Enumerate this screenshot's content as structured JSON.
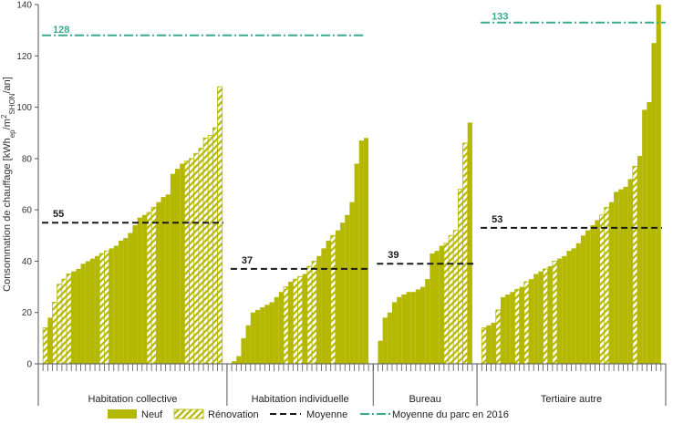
{
  "colors": {
    "neuf": "#b5b800",
    "renovation_stroke": "#b5b800",
    "moyenne": "#1a1a1a",
    "parc": "#3aaa8f",
    "axis": "#555555"
  },
  "chart_data": {
    "type": "bar",
    "title": "",
    "ylabel": "Consommation de chauffage [kWh_ep/m²_SHON/an]",
    "ylim": [
      0,
      140
    ],
    "yticks": [
      0,
      20,
      40,
      60,
      80,
      100,
      120,
      140
    ],
    "legend": {
      "placement": "bottom",
      "items": [
        "Neuf",
        "Rénovation",
        "Moyenne",
        "Moyenne du parc en 2016"
      ]
    },
    "groups": [
      {
        "label": "Habitation collective",
        "moyenne": 55,
        "moyenne_label": "55",
        "parc": 128,
        "parc_label": "128",
        "values": [
          14,
          18,
          24,
          31,
          33,
          35,
          36,
          37,
          39,
          40,
          41,
          42,
          43,
          44,
          45,
          46,
          48,
          49,
          51,
          54,
          57,
          58,
          59,
          61,
          63,
          65,
          66,
          74,
          76,
          78,
          79,
          80,
          82,
          84,
          88,
          89,
          92,
          108
        ],
        "types": [
          "R",
          "N",
          "R",
          "R",
          "R",
          "R",
          "N",
          "N",
          "N",
          "N",
          "N",
          "N",
          "R",
          "R",
          "N",
          "N",
          "N",
          "N",
          "N",
          "N",
          "N",
          "N",
          "R",
          "R",
          "N",
          "N",
          "N",
          "N",
          "N",
          "N",
          "R",
          "R",
          "R",
          "R",
          "R",
          "R",
          "R",
          "R"
        ]
      },
      {
        "label": "Habitation individuelle",
        "moyenne": 37,
        "moyenne_label": "37",
        "values": [
          1,
          3,
          10,
          15,
          20,
          21,
          22,
          23,
          24,
          26,
          28,
          30,
          32,
          33,
          34,
          35,
          38,
          40,
          42,
          45,
          48,
          50,
          52,
          55,
          58,
          63,
          78,
          87,
          88
        ],
        "types": [
          "N",
          "N",
          "N",
          "N",
          "N",
          "N",
          "N",
          "N",
          "N",
          "N",
          "N",
          "R",
          "N",
          "R",
          "R",
          "N",
          "R",
          "R",
          "N",
          "N",
          "N",
          "R",
          "N",
          "N",
          "N",
          "N",
          "N",
          "N",
          "N"
        ]
      },
      {
        "label": "Bureau",
        "moyenne": 39,
        "moyenne_label": "39",
        "values": [
          9,
          18,
          20,
          24,
          26,
          27,
          28,
          28,
          29,
          30,
          33,
          43,
          44,
          46,
          47,
          50,
          52,
          68,
          86,
          94
        ],
        "types": [
          "N",
          "N",
          "N",
          "N",
          "N",
          "N",
          "N",
          "N",
          "N",
          "N",
          "N",
          "N",
          "N",
          "N",
          "R",
          "R",
          "R",
          "R",
          "R",
          "N"
        ]
      },
      {
        "label": "Tertiaire autre",
        "moyenne": 53,
        "moyenne_label": "53",
        "parc": 133,
        "parc_label": "133",
        "values": [
          14,
          15,
          16,
          21,
          26,
          27,
          28,
          29,
          30,
          32,
          33,
          35,
          36,
          37,
          38,
          40,
          41,
          42,
          44,
          45,
          47,
          50,
          52,
          54,
          56,
          58,
          61,
          63,
          67,
          68,
          69,
          72,
          77,
          81,
          99,
          102,
          125,
          140
        ],
        "types": [
          "R",
          "N",
          "N",
          "R",
          "N",
          "N",
          "N",
          "R",
          "N",
          "R",
          "N",
          "N",
          "N",
          "R",
          "N",
          "R",
          "N",
          "N",
          "N",
          "N",
          "N",
          "N",
          "N",
          "N",
          "N",
          "R",
          "R",
          "N",
          "N",
          "N",
          "N",
          "N",
          "R",
          "N",
          "N",
          "N",
          "N",
          "N"
        ]
      }
    ]
  }
}
